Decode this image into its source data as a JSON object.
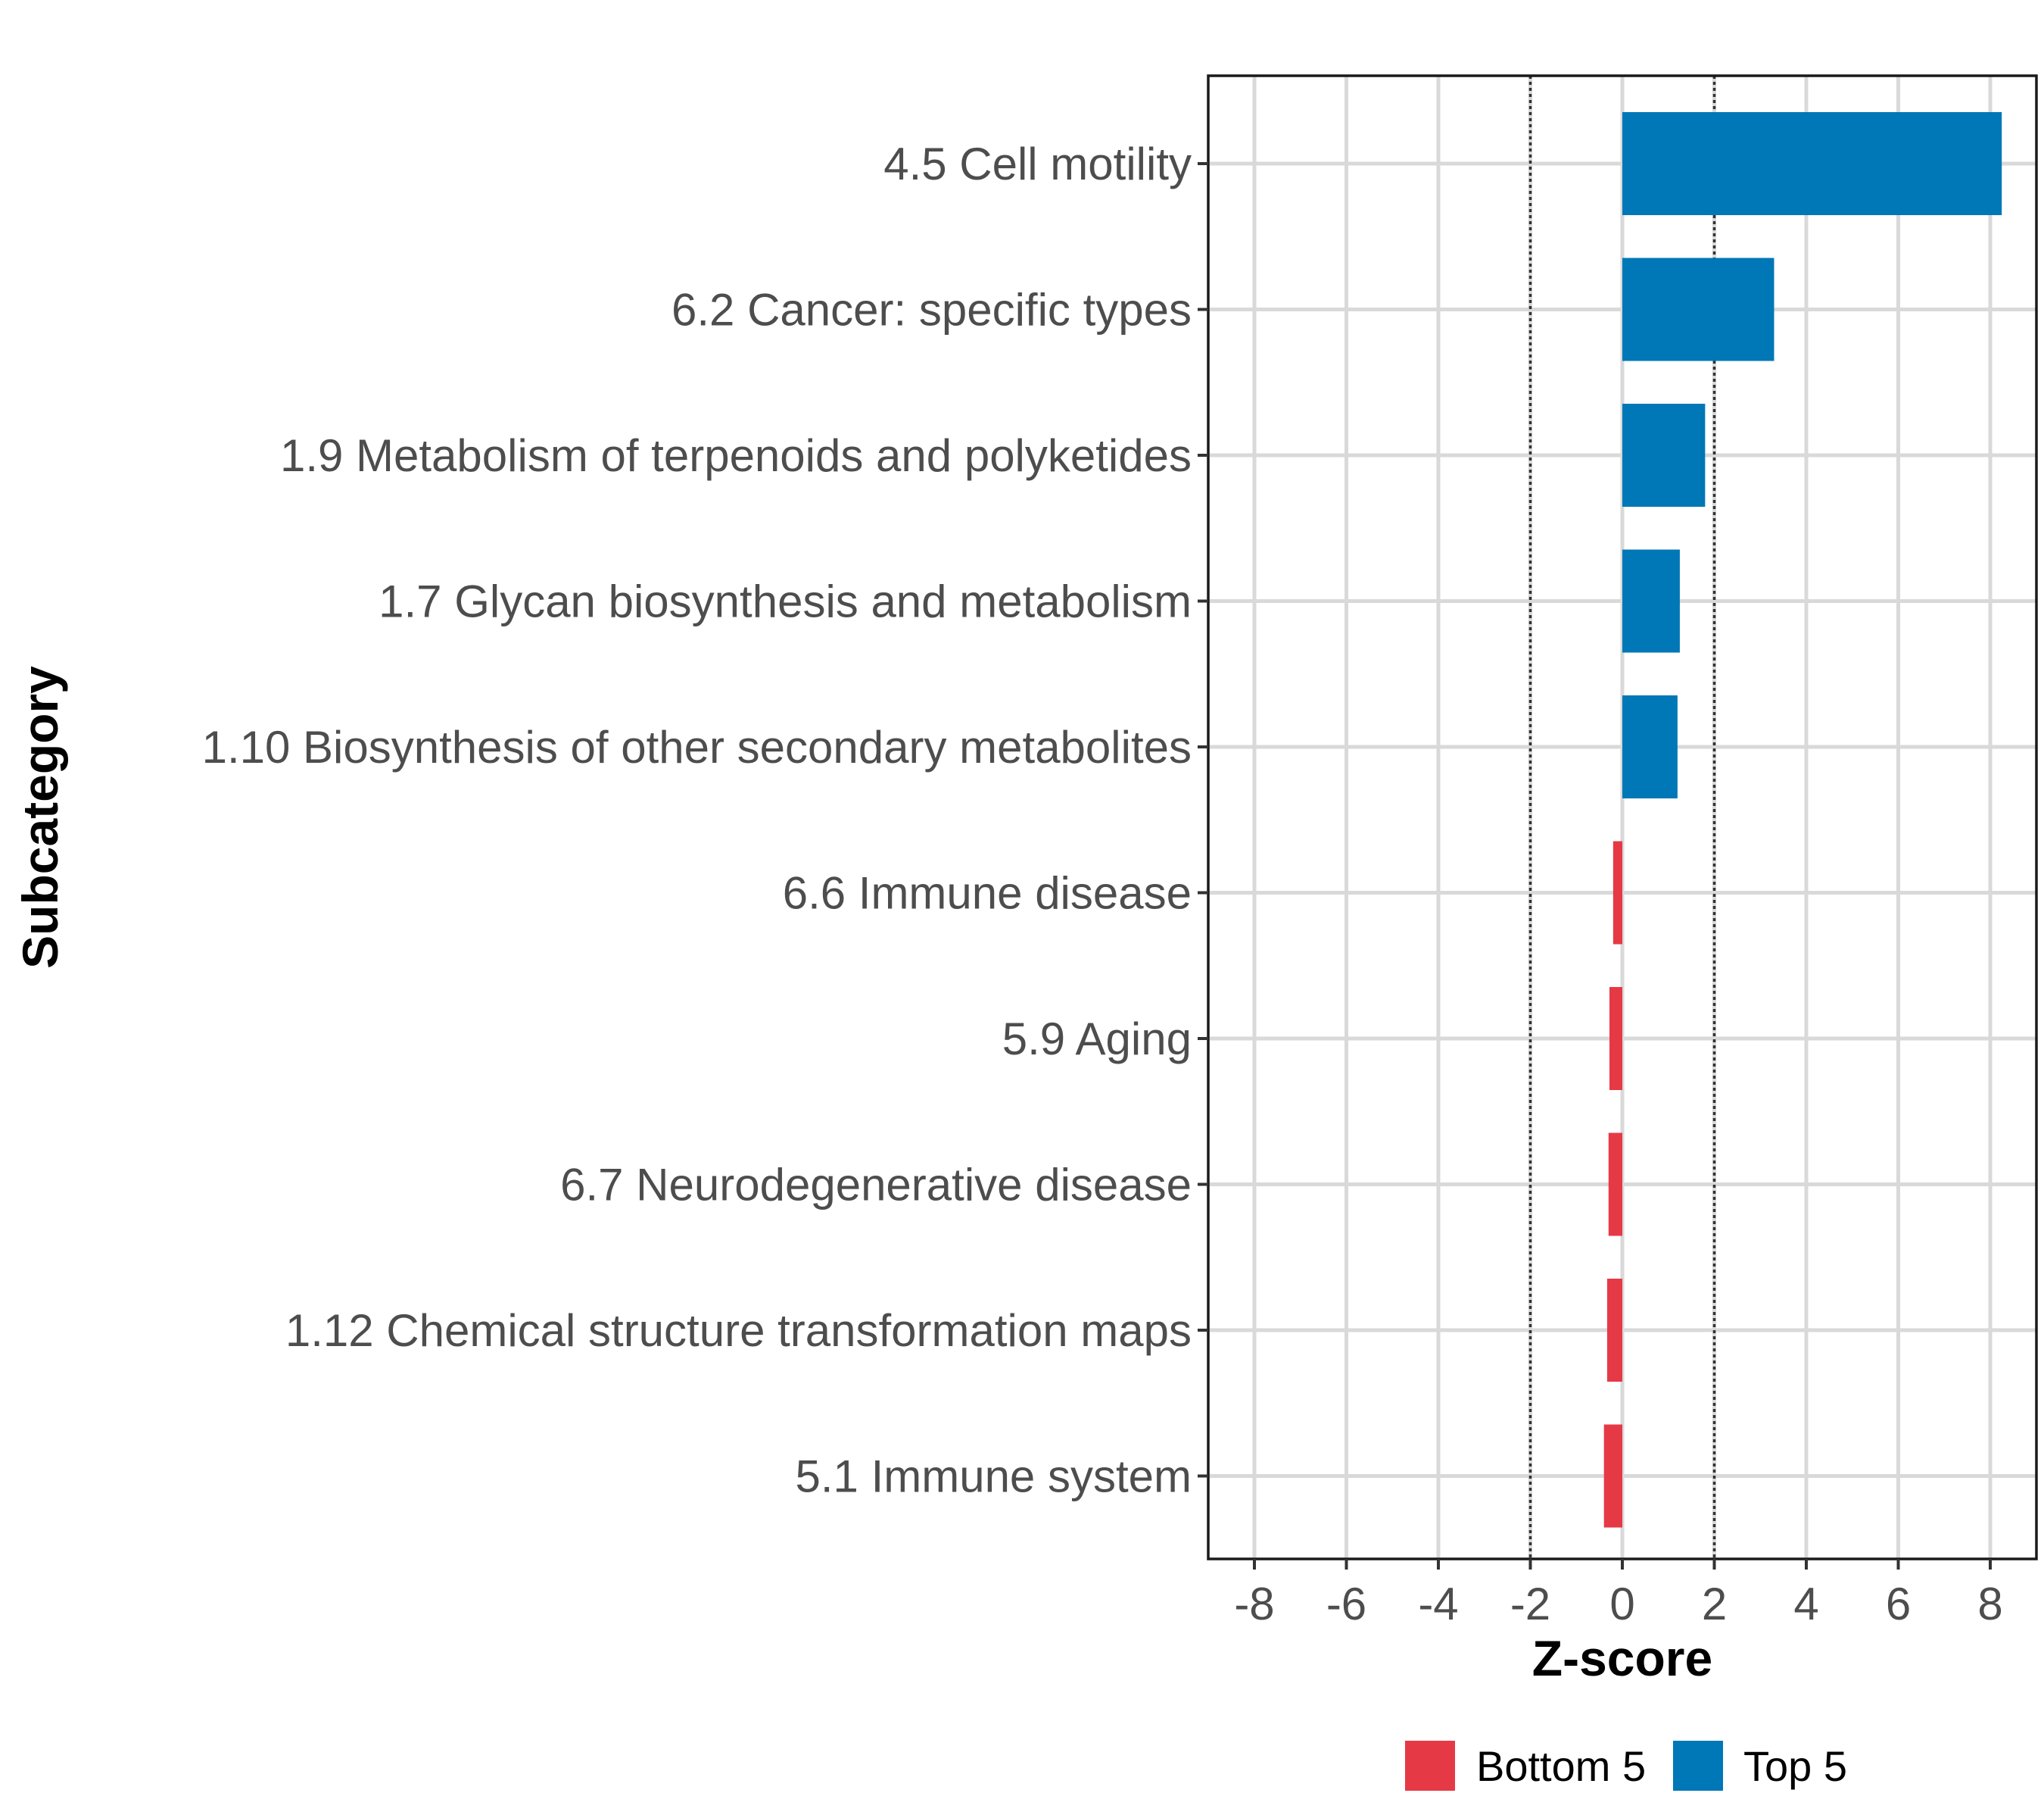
{
  "chart_data": {
    "type": "bar",
    "orientation": "horizontal",
    "categories": [
      "4.5 Cell motility",
      "6.2 Cancer: specific types",
      "1.9 Metabolism of terpenoids and polyketides",
      "1.7 Glycan biosynthesis and metabolism",
      "1.10 Biosynthesis of other secondary metabolites",
      "6.6 Immune disease",
      "5.9 Aging",
      "6.7 Neurodegenerative disease",
      "1.12 Chemical structure transformation maps",
      "5.1 Immune system"
    ],
    "values": [
      8.25,
      3.3,
      1.8,
      1.25,
      1.2,
      -0.2,
      -0.28,
      -0.3,
      -0.33,
      -0.4
    ],
    "groups": [
      "Top 5",
      "Top 5",
      "Top 5",
      "Top 5",
      "Top 5",
      "Bottom 5",
      "Bottom 5",
      "Bottom 5",
      "Bottom 5",
      "Bottom 5"
    ],
    "xlabel": "Z-score",
    "ylabel": "Subcategory",
    "xlim": [
      -9,
      9
    ],
    "xticks": [
      -8,
      -6,
      -4,
      -2,
      0,
      2,
      4,
      6,
      8
    ],
    "xtick_labels": [
      "-8",
      "-6",
      "-4",
      "-2",
      "0",
      "2",
      "4",
      "6",
      "8"
    ],
    "reference_lines": [
      -2,
      2
    ],
    "grid": true,
    "legend": {
      "position": "bottom",
      "items": [
        {
          "label": "Bottom 5",
          "color": "#E63946"
        },
        {
          "label": "Top 5",
          "color": "#0077B6"
        }
      ]
    },
    "colors": {
      "Top 5": "#0077B6",
      "Bottom 5": "#E63946"
    }
  }
}
